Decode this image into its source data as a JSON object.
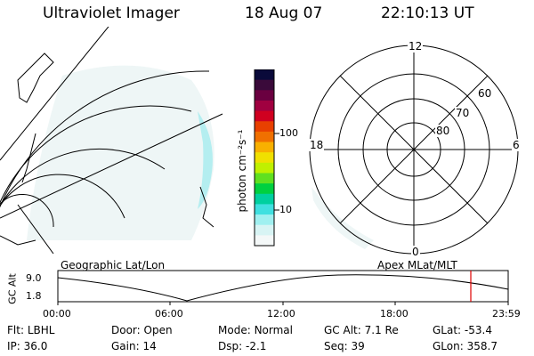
{
  "header": {
    "instrument": "Ultraviolet Imager",
    "date": "18 Aug 07",
    "time": "22:10:13 UT"
  },
  "colorbar": {
    "unit": "photon cm⁻²s⁻¹",
    "ticks": [
      "100",
      "10"
    ],
    "colors": [
      "#0a0a3a",
      "#3a0a3a",
      "#6a0040",
      "#a00040",
      "#d00020",
      "#e84000",
      "#f07000",
      "#f8b000",
      "#f0e000",
      "#c0f000",
      "#60e020",
      "#00d040",
      "#00d0a0",
      "#40e0e0",
      "#a0f0f0",
      "#d8f4f4",
      "#f4f8f8"
    ]
  },
  "map_panel": {
    "label": "Geographic Lat/Lon"
  },
  "polar_panel": {
    "label": "Apex  MLat/MLT",
    "mlt_labels": {
      "top": "12",
      "bottom": "0",
      "left": "18",
      "right": "6"
    },
    "lat_labels": [
      "60",
      "70",
      "80"
    ]
  },
  "altitude_plot": {
    "axis_label": "GC Alt",
    "y_ticks": [
      "9.0",
      "1.8"
    ],
    "x_ticks": [
      "00:00",
      "06:00",
      "12:00",
      "18:00",
      "23:59"
    ],
    "marker_color": "#e00000"
  },
  "status": {
    "row1": [
      {
        "key": "Flt:",
        "value": "LBHL"
      },
      {
        "key": "Door:",
        "value": "Open"
      },
      {
        "key": "Mode:",
        "value": "Normal"
      },
      {
        "key": "GC Alt:",
        "value": "7.1 Re"
      },
      {
        "key": "GLat:",
        "value": "-53.4"
      }
    ],
    "row2": [
      {
        "key": "IP:",
        "value": "36.0"
      },
      {
        "key": "Gain:",
        "value": "14"
      },
      {
        "key": "Dsp:",
        "value": "-2.1"
      },
      {
        "key": "Seq:",
        "value": "39"
      },
      {
        "key": "GLon:",
        "value": "358.7"
      }
    ]
  }
}
